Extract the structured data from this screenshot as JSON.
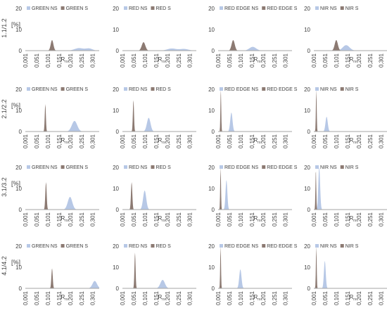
{
  "colors": {
    "ns": "#b7c8e6",
    "s": "#8c7a72",
    "axis": "#a6a6a6",
    "text": "#404040"
  },
  "rows": [
    {
      "label": "1.1/1.2",
      "yunit": "[%]"
    },
    {
      "label": "2.1/2.2",
      "yunit": "[%]"
    },
    {
      "label": "3.1/3.2",
      "yunit": "[%]"
    },
    {
      "label": "4.1/4.2",
      "yunit": "[%]"
    }
  ],
  "chart_data": [
    {
      "type": "area",
      "xlabel": "R",
      "xlabel_sub": "rs",
      "ylim": [
        0,
        20
      ],
      "yticks": [
        "0",
        "10",
        "20"
      ],
      "xticks": [
        "0,001",
        "0,051",
        "0,101",
        "0,151",
        "0,201",
        "0,251",
        "0,301"
      ],
      "xlim": [
        0.001,
        0.33
      ],
      "series": [
        {
          "name": "GREEN NS",
          "kind": "ns",
          "peaks": [
            {
              "center": 0.24,
              "height": 1.2,
              "sigma": 0.02
            },
            {
              "center": 0.285,
              "height": 1.0,
              "sigma": 0.015
            }
          ]
        },
        {
          "name": "GREEN S",
          "kind": "s",
          "peaks": [
            {
              "center": 0.12,
              "height": 5,
              "sigma": 0.006
            }
          ]
        }
      ]
    },
    {
      "type": "area",
      "xlabel": "R",
      "xlabel_sub": "rs",
      "ylim": [
        0,
        20
      ],
      "yticks": [
        "0",
        "10",
        "20"
      ],
      "xticks": [
        "0,001",
        "0,051",
        "0,101",
        "0,151",
        "0,201",
        "0,251",
        "0,301"
      ],
      "xlim": [
        0.001,
        0.33
      ],
      "series": [
        {
          "name": "RED NS",
          "kind": "ns",
          "peaks": [
            {
              "center": 0.22,
              "height": 1.0,
              "sigma": 0.02
            },
            {
              "center": 0.275,
              "height": 0.8,
              "sigma": 0.02
            }
          ]
        },
        {
          "name": "RED S",
          "kind": "s",
          "peaks": [
            {
              "center": 0.095,
              "height": 4,
              "sigma": 0.008
            }
          ]
        }
      ]
    },
    {
      "type": "area",
      "xlabel": "R",
      "xlabel_sub": "rs",
      "ylim": [
        0,
        20
      ],
      "yticks": [
        "0",
        "10",
        "20"
      ],
      "xticks": [
        "0,001",
        "0,051",
        "0,101",
        "0,151",
        "0,201",
        "0,251",
        "0,301"
      ],
      "xlim": [
        0.001,
        0.33
      ],
      "series": [
        {
          "name": "RED EDGE NS",
          "kind": "ns",
          "peaks": [
            {
              "center": 0.155,
              "height": 1.8,
              "sigma": 0.015
            }
          ]
        },
        {
          "name": "RED EDGE S",
          "kind": "s",
          "peaks": [
            {
              "center": 0.068,
              "height": 5,
              "sigma": 0.007
            }
          ]
        }
      ]
    },
    {
      "type": "area",
      "xlabel": "R",
      "xlabel_sub": "rs",
      "ylim": [
        0,
        20
      ],
      "yticks": [
        "0",
        "10",
        "20"
      ],
      "xticks": [
        "0,001",
        "0,051",
        "0,101",
        "0,151",
        "0,201",
        "0,251",
        "0,301"
      ],
      "xlim": [
        0.001,
        0.33
      ],
      "series": [
        {
          "name": "NIR NS",
          "kind": "ns",
          "peaks": [
            {
              "center": 0.145,
              "height": 2.6,
              "sigma": 0.015
            }
          ]
        },
        {
          "name": "NIR S",
          "kind": "s",
          "peaks": [
            {
              "center": 0.101,
              "height": 5,
              "sigma": 0.007
            }
          ]
        }
      ]
    },
    {
      "type": "area",
      "xlabel": "R",
      "xlabel_sub": "rs",
      "ylim": [
        0,
        20
      ],
      "yticks": [
        "0",
        "10",
        "20"
      ],
      "xticks": [
        "0,001",
        "0,051",
        "0,101",
        "0,151",
        "0,201",
        "0,251",
        "0,301"
      ],
      "xlim": [
        0.001,
        0.33
      ],
      "series": [
        {
          "name": "GREEN NS",
          "kind": "ns",
          "peaks": [
            {
              "center": 0.22,
              "height": 5,
              "sigma": 0.012
            }
          ]
        },
        {
          "name": "GREEN S",
          "kind": "s",
          "peaks": [
            {
              "center": 0.09,
              "height": 13,
              "sigma": 0.0025
            }
          ]
        }
      ]
    },
    {
      "type": "area",
      "xlabel": "R",
      "xlabel_sub": "rs",
      "ylim": [
        0,
        20
      ],
      "yticks": [
        "0",
        "10",
        "20"
      ],
      "xticks": [
        "0,001",
        "0,051",
        "0,101",
        "0,151",
        "0,201",
        "0,251",
        "0,301"
      ],
      "xlim": [
        0.001,
        0.33
      ],
      "series": [
        {
          "name": "RED NS",
          "kind": "ns",
          "peaks": [
            {
              "center": 0.118,
              "height": 6.5,
              "sigma": 0.008
            }
          ]
        },
        {
          "name": "RED S",
          "kind": "s",
          "peaks": [
            {
              "center": 0.05,
              "height": 15,
              "sigma": 0.0025
            }
          ]
        }
      ]
    },
    {
      "type": "area",
      "xlabel": "R",
      "xlabel_sub": "rs",
      "ylim": [
        0,
        20
      ],
      "yticks": [
        "0",
        "10",
        "20"
      ],
      "xticks": [
        "0,001",
        "0,051",
        "0,101",
        "0,151",
        "0,201",
        "0,251",
        "0,301"
      ],
      "xlim": [
        0.001,
        0.33
      ],
      "series": [
        {
          "name": "RED EDGE NS",
          "kind": "ns",
          "peaks": [
            {
              "center": 0.06,
              "height": 9,
              "sigma": 0.005
            }
          ]
        },
        {
          "name": "RED EDGE S",
          "kind": "s",
          "peaks": [
            {
              "center": 0.013,
              "height": 20,
              "sigma": 0.0018
            }
          ]
        }
      ]
    },
    {
      "type": "area",
      "xlabel": "R",
      "xlabel_sub": "rs",
      "ylim": [
        0,
        20
      ],
      "yticks": [
        "0",
        "10",
        "20"
      ],
      "xticks": [
        "0,001",
        "0,051",
        "0,101",
        "0,151",
        "0,201",
        "0,251",
        "0,301"
      ],
      "xlim": [
        0.001,
        0.33
      ],
      "series": [
        {
          "name": "NIR NS",
          "kind": "ns",
          "peaks": [
            {
              "center": 0.058,
              "height": 7,
              "sigma": 0.005
            }
          ]
        },
        {
          "name": "NIR S",
          "kind": "s",
          "peaks": [
            {
              "center": 0.012,
              "height": 20,
              "sigma": 0.0018
            }
          ]
        }
      ]
    },
    {
      "type": "area",
      "xlabel": "R",
      "xlabel_sub": "rs",
      "ylim": [
        0,
        20
      ],
      "yticks": [
        "0",
        "10",
        "20"
      ],
      "xticks": [
        "0,001",
        "0,051",
        "0,101",
        "0,151",
        "0,201",
        "0,251",
        "0,301"
      ],
      "xlim": [
        0.001,
        0.33
      ],
      "series": [
        {
          "name": "GREEN NS",
          "kind": "ns",
          "peaks": [
            {
              "center": 0.2,
              "height": 6,
              "sigma": 0.01
            }
          ]
        },
        {
          "name": "GREEN S",
          "kind": "s",
          "peaks": [
            {
              "center": 0.093,
              "height": 13,
              "sigma": 0.003
            }
          ]
        }
      ]
    },
    {
      "type": "area",
      "xlabel": "R",
      "xlabel_sub": "rs",
      "ylim": [
        0,
        20
      ],
      "yticks": [
        "0",
        "10",
        "20"
      ],
      "xticks": [
        "0,001",
        "0,051",
        "0,101",
        "0,151",
        "0,201",
        "0,251",
        "0,301"
      ],
      "xlim": [
        0.001,
        0.33
      ],
      "series": [
        {
          "name": "RED NS",
          "kind": "ns",
          "peaks": [
            {
              "center": 0.1,
              "height": 9,
              "sigma": 0.007
            }
          ]
        },
        {
          "name": "RED S",
          "kind": "s",
          "peaks": [
            {
              "center": 0.042,
              "height": 13,
              "sigma": 0.003
            }
          ]
        }
      ]
    },
    {
      "type": "area",
      "xlabel": "R",
      "xlabel_sub": "rs",
      "ylim": [
        0,
        20
      ],
      "yticks": [
        "0",
        "10",
        "20"
      ],
      "xticks": [
        "0,001",
        "0,051",
        "0,101",
        "0,151",
        "0,201",
        "0,251",
        "0,301"
      ],
      "xlim": [
        0.001,
        0.33
      ],
      "series": [
        {
          "name": "RED EDGE NS",
          "kind": "ns",
          "peaks": [
            {
              "center": 0.038,
              "height": 14,
              "sigma": 0.004
            }
          ]
        },
        {
          "name": "RED EDGE S",
          "kind": "s",
          "peaks": [
            {
              "center": 0.012,
              "height": 20,
              "sigma": 0.0018
            }
          ]
        }
      ]
    },
    {
      "type": "area",
      "xlabel": "R",
      "xlabel_sub": "rs",
      "ylim": [
        0,
        20
      ],
      "yticks": [
        "0",
        "10",
        "20"
      ],
      "xticks": [
        "0,001",
        "0,051",
        "0,101",
        "0,151",
        "0,201",
        "0,251",
        "0,301"
      ],
      "xlim": [
        0.001,
        0.33
      ],
      "series": [
        {
          "name": "NIR NS",
          "kind": "ns",
          "peaks": [
            {
              "center": 0.025,
              "height": 20,
              "sigma": 0.004
            }
          ]
        },
        {
          "name": "NIR S",
          "kind": "s",
          "peaks": [
            {
              "center": 0.01,
              "height": 19,
              "sigma": 0.0018
            }
          ]
        }
      ]
    },
    {
      "type": "area",
      "xlabel": "R",
      "xlabel_sub": "rs",
      "ylim": [
        0,
        20
      ],
      "yticks": [
        "0",
        "10",
        "20"
      ],
      "xticks": [
        "0,001",
        "0,051",
        "0,101",
        "0,151",
        "0,201",
        "0,251",
        "0,301"
      ],
      "xlim": [
        0.001,
        0.33
      ],
      "series": [
        {
          "name": "GREEN NS",
          "kind": "ns",
          "peaks": [
            {
              "center": 0.31,
              "height": 3.5,
              "sigma": 0.01
            }
          ]
        },
        {
          "name": "GREEN S",
          "kind": "s",
          "peaks": [
            {
              "center": 0.12,
              "height": 9.5,
              "sigma": 0.003
            }
          ]
        }
      ]
    },
    {
      "type": "area",
      "xlabel": "R",
      "xlabel_sub": "rs",
      "ylim": [
        0,
        20
      ],
      "yticks": [
        "0",
        "10",
        "20"
      ],
      "xticks": [
        "0,001",
        "0,051",
        "0,101",
        "0,151",
        "0,201",
        "0,251",
        "0,301"
      ],
      "xlim": [
        0.001,
        0.33
      ],
      "series": [
        {
          "name": "RED NS",
          "kind": "ns",
          "peaks": [
            {
              "center": 0.18,
              "height": 4,
              "sigma": 0.01
            }
          ]
        },
        {
          "name": "RED S",
          "kind": "s",
          "peaks": [
            {
              "center": 0.057,
              "height": 17,
              "sigma": 0.0025
            }
          ]
        }
      ]
    },
    {
      "type": "area",
      "xlabel": "R",
      "xlabel_sub": "rs",
      "ylim": [
        0,
        20
      ],
      "yticks": [
        "0",
        "10",
        "20"
      ],
      "xticks": [
        "0,001",
        "0,051",
        "0,101",
        "0,151",
        "0,201",
        "0,251",
        "0,301"
      ],
      "xlim": [
        0.001,
        0.33
      ],
      "series": [
        {
          "name": "RED EDGE NS",
          "kind": "ns",
          "peaks": [
            {
              "center": 0.1,
              "height": 9,
              "sigma": 0.005
            }
          ]
        },
        {
          "name": "RED EDGE S",
          "kind": "s",
          "peaks": [
            {
              "center": 0.012,
              "height": 20,
              "sigma": 0.0018
            }
          ]
        }
      ]
    },
    {
      "type": "area",
      "xlabel": "R",
      "xlabel_sub": "rs",
      "ylim": [
        0,
        20
      ],
      "yticks": [
        "0",
        "10",
        "20"
      ],
      "xticks": [
        "0,001",
        "0,051",
        "0,101",
        "0,151",
        "0,201",
        "0,251",
        "0,301"
      ],
      "xlim": [
        0.001,
        0.33
      ],
      "series": [
        {
          "name": "NIR NS",
          "kind": "ns",
          "peaks": [
            {
              "center": 0.05,
              "height": 13,
              "sigma": 0.004
            }
          ]
        },
        {
          "name": "NIR S",
          "kind": "s",
          "peaks": [
            {
              "center": 0.012,
              "height": 20,
              "sigma": 0.0018
            }
          ]
        }
      ]
    }
  ]
}
